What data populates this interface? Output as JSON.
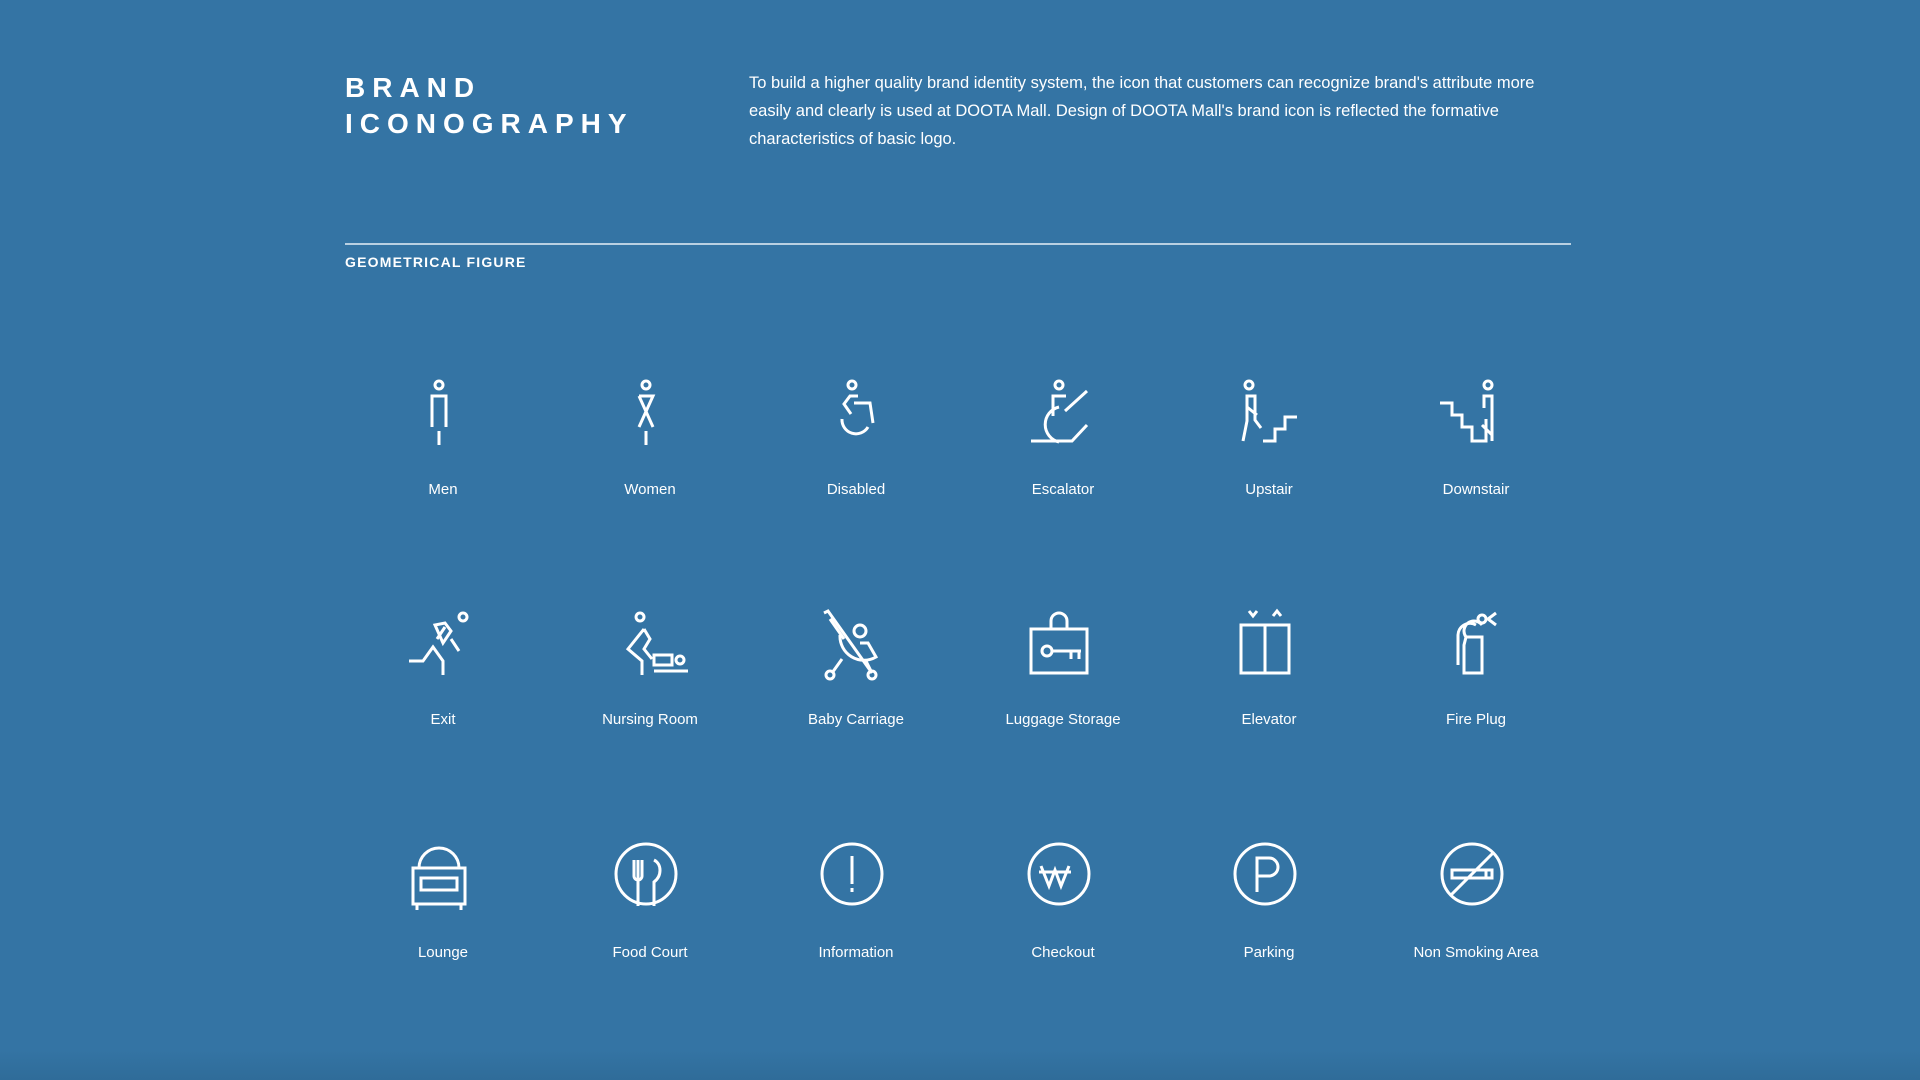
{
  "header": {
    "title_line1": "BRAND",
    "title_line2": "ICONOGRAPHY",
    "description": "To build a higher quality brand identity system, the icon that customers can recognize brand's attribute more easily and clearly is used at DOOTA Mall. Design of DOOTA Mall's brand icon is reflected the formative characteristics of basic logo."
  },
  "section": {
    "label": "GEOMETRICAL FIGURE"
  },
  "colors": {
    "background": "#3474a4",
    "foreground": "#ffffff"
  },
  "icons": [
    {
      "label": "Men",
      "icon": "men-icon"
    },
    {
      "label": "Women",
      "icon": "women-icon"
    },
    {
      "label": "Disabled",
      "icon": "disabled-icon"
    },
    {
      "label": "Escalator",
      "icon": "escalator-icon"
    },
    {
      "label": "Upstair",
      "icon": "upstair-icon"
    },
    {
      "label": "Downstair",
      "icon": "downstair-icon"
    },
    {
      "label": "Exit",
      "icon": "exit-icon"
    },
    {
      "label": "Nursing Room",
      "icon": "nursing-room-icon"
    },
    {
      "label": "Baby Carriage",
      "icon": "baby-carriage-icon"
    },
    {
      "label": "Luggage Storage",
      "icon": "luggage-storage-icon"
    },
    {
      "label": "Elevator",
      "icon": "elevator-icon"
    },
    {
      "label": "Fire Plug",
      "icon": "fire-plug-icon"
    },
    {
      "label": "Lounge",
      "icon": "lounge-icon"
    },
    {
      "label": "Food Court",
      "icon": "food-court-icon"
    },
    {
      "label": "Information",
      "icon": "information-icon"
    },
    {
      "label": "Checkout",
      "icon": "checkout-icon"
    },
    {
      "label": "Parking",
      "icon": "parking-icon"
    },
    {
      "label": "Non Smoking Area",
      "icon": "non-smoking-icon"
    }
  ]
}
